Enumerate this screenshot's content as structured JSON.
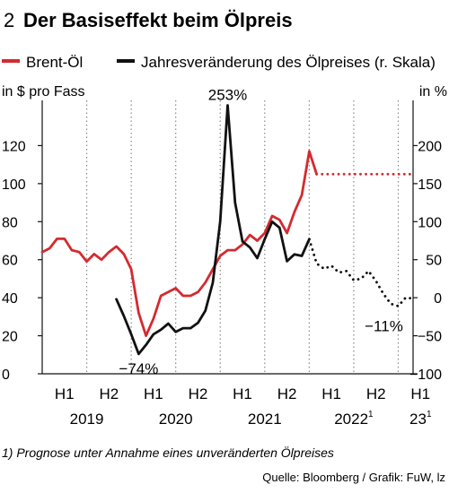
{
  "chart_data": {
    "type": "line",
    "figure_number": "2",
    "title": "Der Basiseffekt beim Ölpreis",
    "left_axis": {
      "unit_label": "in $ pro Fass",
      "ylim": [
        0,
        140
      ],
      "ticks": [
        0,
        20,
        40,
        60,
        80,
        100,
        120
      ]
    },
    "right_axis": {
      "unit_label": "in %",
      "ylim": [
        -100,
        250
      ],
      "ticks": [
        -100,
        -50,
        0,
        50,
        100,
        150,
        200
      ]
    },
    "x_axis": {
      "half_labels": [
        "H1",
        "H2",
        "H1",
        "H2",
        "H1",
        "H2",
        "H1",
        "H2",
        "H1"
      ],
      "years": [
        {
          "label": "2019",
          "sup": ""
        },
        {
          "label": "2020",
          "sup": ""
        },
        {
          "label": "2021",
          "sup": ""
        },
        {
          "label": "2022",
          "sup": "1"
        },
        {
          "label": "23",
          "sup": "1"
        }
      ]
    },
    "grid": "dotted vertical lines at half-year boundaries",
    "series": [
      {
        "name": "Brent-Öl",
        "axis": "left",
        "color": "#d42a2f",
        "values": [
          [
            0,
            64
          ],
          [
            1,
            66
          ],
          [
            2,
            71
          ],
          [
            3,
            71
          ],
          [
            4,
            65
          ],
          [
            5,
            64
          ],
          [
            6,
            59
          ],
          [
            7,
            63
          ],
          [
            8,
            60
          ],
          [
            9,
            64
          ],
          [
            10,
            67
          ],
          [
            11,
            63
          ],
          [
            12,
            55
          ],
          [
            13,
            32
          ],
          [
            14,
            20
          ],
          [
            15,
            29
          ],
          [
            16,
            41
          ],
          [
            17,
            43
          ],
          [
            18,
            45
          ],
          [
            19,
            41
          ],
          [
            20,
            41
          ],
          [
            21,
            43
          ],
          [
            22,
            48
          ],
          [
            23,
            55
          ],
          [
            24,
            62
          ],
          [
            25,
            65
          ],
          [
            26,
            65
          ],
          [
            27,
            68
          ],
          [
            28,
            73
          ],
          [
            29,
            70
          ],
          [
            30,
            74
          ],
          [
            31,
            83
          ],
          [
            32,
            81
          ],
          [
            33,
            74
          ],
          [
            34,
            85
          ],
          [
            35,
            94
          ],
          [
            36,
            117
          ],
          [
            37,
            105
          ]
        ],
        "forecast": [
          [
            37,
            105
          ],
          [
            50,
            105
          ]
        ]
      },
      {
        "name": "Jahresveränderung des Ölpreises (r. Skala)",
        "axis": "right",
        "color": "#111111",
        "values": [
          [
            10,
            -2
          ],
          [
            11,
            -24
          ],
          [
            12,
            -48
          ],
          [
            13,
            -74
          ],
          [
            14,
            -62
          ],
          [
            15,
            -48
          ],
          [
            16,
            -42
          ],
          [
            17,
            -34
          ],
          [
            18,
            -45
          ],
          [
            19,
            -40
          ],
          [
            20,
            -40
          ],
          [
            21,
            -33
          ],
          [
            22,
            -17
          ],
          [
            23,
            20
          ],
          [
            24,
            100
          ],
          [
            25,
            253
          ],
          [
            26,
            125
          ],
          [
            27,
            74
          ],
          [
            28,
            66
          ],
          [
            29,
            52
          ],
          [
            30,
            77
          ],
          [
            31,
            100
          ],
          [
            32,
            92
          ],
          [
            33,
            48
          ],
          [
            34,
            57
          ],
          [
            35,
            55
          ],
          [
            36,
            77
          ]
        ],
        "forecast": [
          [
            36,
            77
          ],
          [
            37,
            45
          ],
          [
            38,
            38
          ],
          [
            39,
            42
          ],
          [
            40,
            33
          ],
          [
            41,
            35
          ],
          [
            42,
            23
          ],
          [
            43,
            25
          ],
          [
            44,
            35
          ],
          [
            45,
            22
          ],
          [
            46,
            5
          ],
          [
            47,
            -8
          ],
          [
            48,
            -11
          ],
          [
            49,
            0
          ],
          [
            50,
            -1
          ]
        ]
      }
    ],
    "annotations": [
      {
        "text": "253%",
        "series": 1,
        "x": 25,
        "y": 253
      },
      {
        "text": "−74%",
        "series": 1,
        "x": 13,
        "y": -74
      },
      {
        "text": "−11%",
        "series": 1,
        "x": 48,
        "y": -11
      }
    ],
    "legend_position": "top"
  },
  "footnote": "1) Prognose unter Annahme eines unveränderten Ölpreises",
  "source": "Quelle: Bloomberg / Grafik: FuW, lz"
}
